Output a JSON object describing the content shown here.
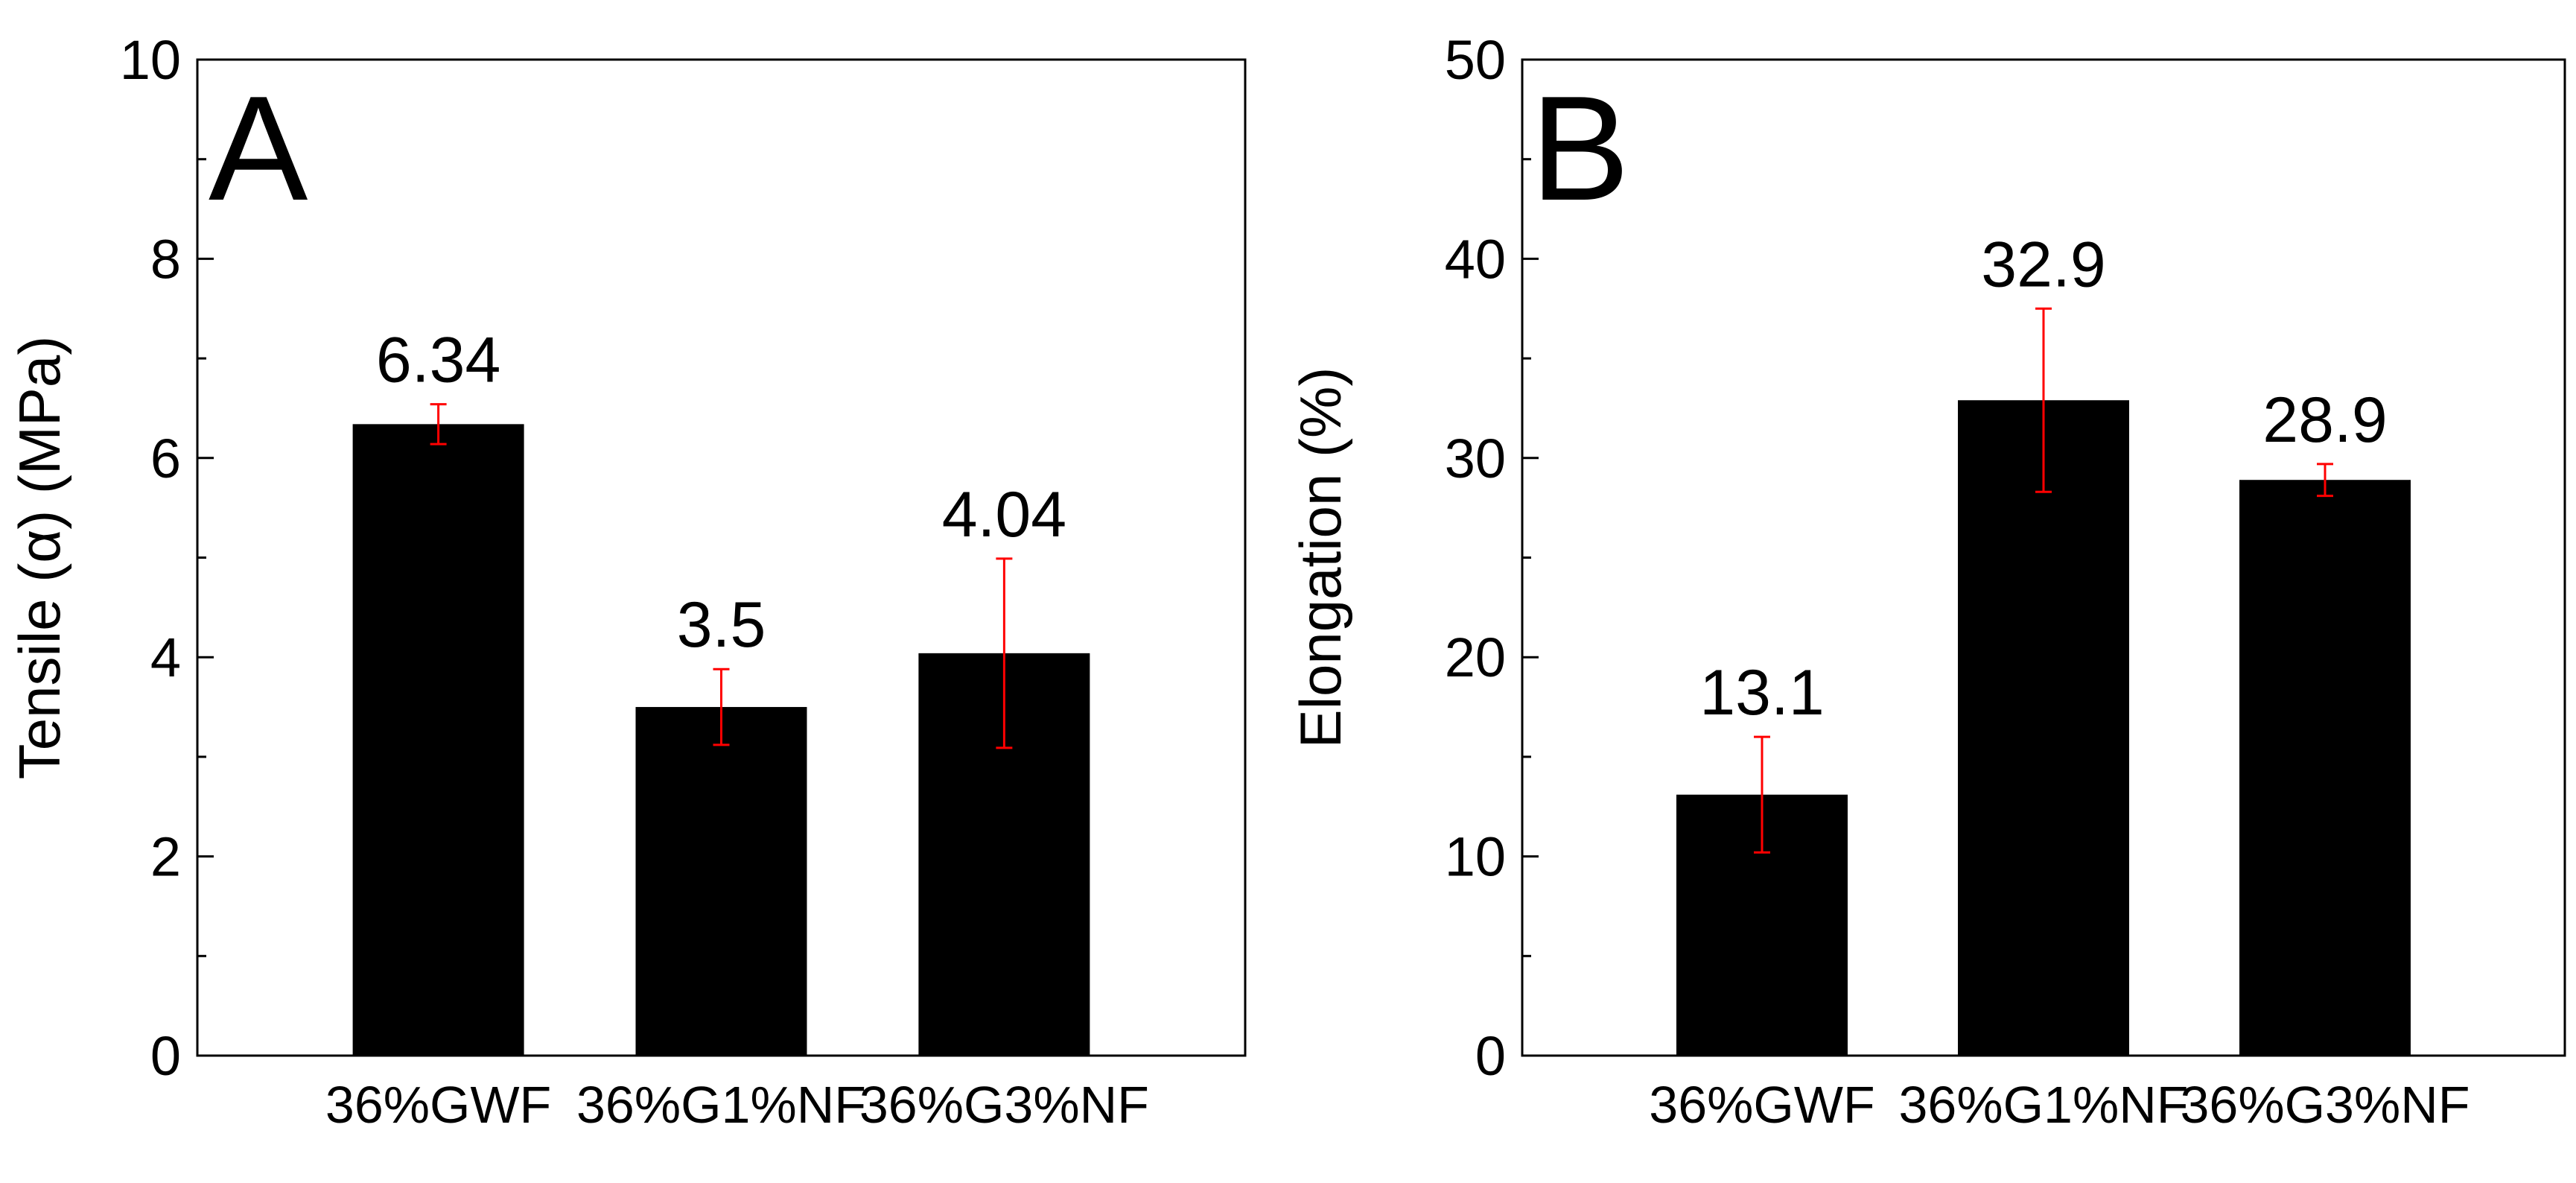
{
  "chart_data": [
    {
      "type": "bar",
      "panel_label": "A",
      "categories": [
        "36%GWF",
        "36%G1%NF",
        "36%G3%NF"
      ],
      "values": [
        6.34,
        3.5,
        4.04
      ],
      "value_labels": [
        "6.34",
        "3.5",
        "4.04"
      ],
      "error_bars": [
        0.2,
        0.38,
        0.95
      ],
      "ylabel": "Tensile (α) (MPa)",
      "xlabel": "",
      "ylim": [
        0,
        10
      ],
      "yticks": [
        0,
        2,
        4,
        6,
        8,
        10
      ],
      "ytick_labels": [
        "0",
        "2",
        "4",
        "6",
        "8",
        "10"
      ],
      "grid": false,
      "bar_color": "#000000",
      "error_color": "#ff0000"
    },
    {
      "type": "bar",
      "panel_label": "B",
      "categories": [
        "36%GWF",
        "36%G1%NF",
        "36%G3%NF"
      ],
      "values": [
        13.1,
        32.9,
        28.9
      ],
      "value_labels": [
        "13.1",
        "32.9",
        "28.9"
      ],
      "error_bars": [
        2.9,
        4.6,
        0.8
      ],
      "ylabel": "Elongation (%)",
      "xlabel": "",
      "ylim": [
        0,
        50
      ],
      "yticks": [
        0,
        10,
        20,
        30,
        40,
        50
      ],
      "ytick_labels": [
        "0",
        "10",
        "20",
        "30",
        "40",
        "50"
      ],
      "grid": false,
      "bar_color": "#000000",
      "error_color": "#ff0000"
    }
  ]
}
